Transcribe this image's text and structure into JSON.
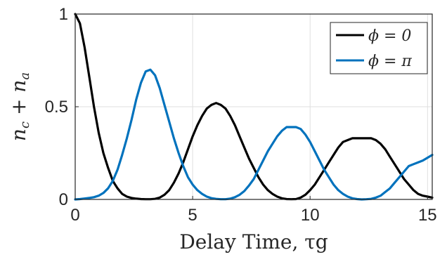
{
  "chart_data": {
    "type": "line",
    "xlabel": "Delay Time, τg",
    "ylabel": "n_c + n_a",
    "xlim": [
      0,
      15.2
    ],
    "ylim": [
      0,
      1
    ],
    "x_ticks": [
      0,
      5,
      10,
      15
    ],
    "y_ticks": [
      0,
      0.5,
      1
    ],
    "x_tick_labels": [
      "0",
      "5",
      "10",
      "15"
    ],
    "y_tick_labels": [
      "0",
      "0.5",
      "1"
    ],
    "grid": true,
    "legend_position": "top-right",
    "series": [
      {
        "name": "ϕ = 0",
        "color": "#000000",
        "x": [
          0,
          0.2,
          0.4,
          0.6,
          0.8,
          1.0,
          1.2,
          1.4,
          1.6,
          1.8,
          2.0,
          2.2,
          2.4,
          2.6,
          2.8,
          3.0,
          3.2,
          3.4,
          3.6,
          3.8,
          4.0,
          4.2,
          4.4,
          4.6,
          4.8,
          5.0,
          5.2,
          5.4,
          5.6,
          5.8,
          6.0,
          6.2,
          6.4,
          6.6,
          6.8,
          7.0,
          7.2,
          7.4,
          7.6,
          7.8,
          8.0,
          8.2,
          8.4,
          8.6,
          8.8,
          9.0,
          9.2,
          9.4,
          9.6,
          9.8,
          10.0,
          10.2,
          10.4,
          10.6,
          10.8,
          11.0,
          11.2,
          11.4,
          11.6,
          11.8,
          12.0,
          12.2,
          12.4,
          12.6,
          12.8,
          13.0,
          13.2,
          13.4,
          13.6,
          13.8,
          14.0,
          14.2,
          14.4,
          14.6,
          14.8,
          15.0,
          15.2
        ],
        "y": [
          1.0,
          0.95,
          0.82,
          0.66,
          0.5,
          0.36,
          0.25,
          0.17,
          0.1,
          0.06,
          0.03,
          0.015,
          0.008,
          0.004,
          0.002,
          0.001,
          0.001,
          0.003,
          0.01,
          0.025,
          0.05,
          0.09,
          0.14,
          0.2,
          0.27,
          0.34,
          0.4,
          0.45,
          0.49,
          0.51,
          0.52,
          0.51,
          0.49,
          0.45,
          0.4,
          0.34,
          0.28,
          0.22,
          0.17,
          0.12,
          0.08,
          0.05,
          0.03,
          0.015,
          0.006,
          0.002,
          0.001,
          0.002,
          0.01,
          0.025,
          0.05,
          0.08,
          0.12,
          0.16,
          0.2,
          0.24,
          0.28,
          0.31,
          0.32,
          0.33,
          0.33,
          0.33,
          0.33,
          0.33,
          0.32,
          0.3,
          0.27,
          0.23,
          0.19,
          0.15,
          0.11,
          0.08,
          0.05,
          0.03,
          0.02,
          0.015,
          0.01
        ]
      },
      {
        "name": "ϕ = π",
        "color": "#0072BD",
        "x": [
          0,
          0.2,
          0.4,
          0.6,
          0.8,
          1.0,
          1.2,
          1.4,
          1.6,
          1.8,
          2.0,
          2.2,
          2.4,
          2.6,
          2.8,
          3.0,
          3.2,
          3.4,
          3.6,
          3.8,
          4.0,
          4.2,
          4.4,
          4.6,
          4.8,
          5.0,
          5.2,
          5.4,
          5.6,
          5.8,
          6.0,
          6.2,
          6.4,
          6.6,
          6.8,
          7.0,
          7.2,
          7.4,
          7.6,
          7.8,
          8.0,
          8.2,
          8.4,
          8.6,
          8.8,
          9.0,
          9.2,
          9.4,
          9.6,
          9.8,
          10.0,
          10.2,
          10.4,
          10.6,
          10.8,
          11.0,
          11.2,
          11.4,
          11.6,
          11.8,
          12.0,
          12.2,
          12.4,
          12.6,
          12.8,
          13.0,
          13.2,
          13.4,
          13.6,
          13.8,
          14.0,
          14.2,
          14.4,
          14.6,
          14.8,
          15.0,
          15.2
        ],
        "y": [
          0.0,
          0.002,
          0.005,
          0.008,
          0.012,
          0.02,
          0.035,
          0.06,
          0.1,
          0.16,
          0.24,
          0.33,
          0.43,
          0.54,
          0.63,
          0.69,
          0.7,
          0.67,
          0.6,
          0.51,
          0.42,
          0.33,
          0.25,
          0.18,
          0.12,
          0.08,
          0.05,
          0.03,
          0.015,
          0.007,
          0.003,
          0.001,
          0.001,
          0.004,
          0.012,
          0.025,
          0.045,
          0.075,
          0.11,
          0.16,
          0.21,
          0.26,
          0.3,
          0.34,
          0.37,
          0.39,
          0.39,
          0.39,
          0.38,
          0.35,
          0.31,
          0.26,
          0.21,
          0.16,
          0.12,
          0.08,
          0.05,
          0.03,
          0.015,
          0.006,
          0.002,
          0.0,
          0.001,
          0.003,
          0.01,
          0.02,
          0.04,
          0.06,
          0.09,
          0.12,
          0.15,
          0.18,
          0.19,
          0.2,
          0.21,
          0.225,
          0.24
        ]
      }
    ]
  }
}
